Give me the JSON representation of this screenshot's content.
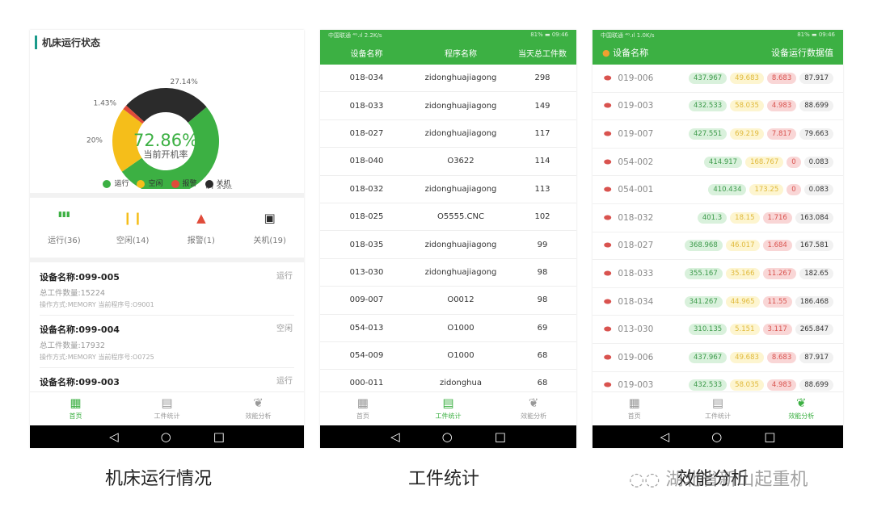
{
  "screen1": {
    "title": "机床运行状态",
    "chart_data": {
      "type": "pie",
      "center_value": "72.86%",
      "center_label": "当前开机率",
      "categories": [
        "运行",
        "空闲",
        "报警",
        "关机"
      ],
      "values": [
        51.43,
        20,
        1.43,
        27.14
      ],
      "labels": [
        "51.43%",
        "20%",
        "1.43%",
        "27.14%"
      ],
      "colors": [
        "#3cb043",
        "#f5be1a",
        "#e04b3a",
        "#2b2b2b"
      ],
      "legend_position": "bottom"
    },
    "counts": [
      {
        "label": "运行(36)",
        "icon": "bar-chart-icon",
        "color": "#3cb043"
      },
      {
        "label": "空闲(14)",
        "icon": "pause-icon",
        "color": "#f5be1a"
      },
      {
        "label": "报警(1)",
        "icon": "warning-icon",
        "color": "#e04b3a"
      },
      {
        "label": "关机(19)",
        "icon": "shutdown-icon",
        "color": "#2b2b2b"
      }
    ],
    "devices": [
      {
        "name": "设备名称:099-005",
        "status": "运行",
        "total": "总工件数量:15224",
        "op": "操作方式:MEMORY 当前程序号:O9001"
      },
      {
        "name": "设备名称:099-004",
        "status": "空闲",
        "total": "总工件数量:17932",
        "op": "操作方式:MEMORY 当前程序号:O0725"
      },
      {
        "name": "设备名称:099-003",
        "status": "运行",
        "total": "",
        "op": ""
      }
    ],
    "caption": "机床运行情况"
  },
  "tabs": [
    {
      "label": "首页",
      "icon": "home-grid-icon"
    },
    {
      "label": "工件统计",
      "icon": "table-icon"
    },
    {
      "label": "效能分析",
      "icon": "leaf-icon"
    }
  ],
  "navbar": {
    "back": "◁",
    "home": "○",
    "recent": "□"
  },
  "screen2": {
    "status": {
      "left": "中国联通 ⁴ᴳ.ıl 2.2K/s",
      "right": "81% ▬ 09:46"
    },
    "headers": [
      "设备名称",
      "程序名称",
      "当天总工件数"
    ],
    "rows": [
      [
        "018-034",
        "zidonghuajiagong",
        "298"
      ],
      [
        "018-033",
        "zidonghuajiagong",
        "149"
      ],
      [
        "018-027",
        "zidonghuajiagong",
        "117"
      ],
      [
        "018-040",
        "O3622",
        "114"
      ],
      [
        "018-032",
        "zidonghuajiagong",
        "113"
      ],
      [
        "018-025",
        "O5555.CNC",
        "102"
      ],
      [
        "018-035",
        "zidonghuajiagong",
        "99"
      ],
      [
        "013-030",
        "zidonghuajiagong",
        "98"
      ],
      [
        "009-007",
        "O0012",
        "98"
      ],
      [
        "054-013",
        "O1000",
        "69"
      ],
      [
        "054-009",
        "O1000",
        "68"
      ],
      [
        "000-011",
        "zidonghua",
        "68"
      ]
    ],
    "caption": "工件统计"
  },
  "screen3": {
    "status": {
      "left": "中国联通 ⁴ᴳ.ıl 1.0K/s",
      "right": "81% ▬ 09:46"
    },
    "header_left": "设备名称",
    "header_right": "设备运行数据值",
    "rows": [
      [
        "019-006",
        "437.967",
        "49.683",
        "8.683",
        "87.917"
      ],
      [
        "019-003",
        "432.533",
        "58.035",
        "4.983",
        "88.699"
      ],
      [
        "019-007",
        "427.551",
        "69.219",
        "7.817",
        "79.663"
      ],
      [
        "054-002",
        "414.917",
        "168.767",
        "0",
        "0.083"
      ],
      [
        "054-001",
        "410.434",
        "173.25",
        "0",
        "0.083"
      ],
      [
        "018-032",
        "401.3",
        "18.15",
        "1.716",
        "163.084"
      ],
      [
        "018-027",
        "368.968",
        "46.017",
        "1.684",
        "167.581"
      ],
      [
        "018-033",
        "355.167",
        "35.166",
        "11.267",
        "182.65"
      ],
      [
        "018-034",
        "341.267",
        "44.965",
        "11.55",
        "186.468"
      ],
      [
        "013-030",
        "310.135",
        "5.151",
        "3.117",
        "265.847"
      ],
      [
        "019-006",
        "437.967",
        "49.683",
        "8.683",
        "87.917"
      ],
      [
        "019-003",
        "432.533",
        "58.035",
        "4.983",
        "88.699"
      ]
    ],
    "caption": "效能分析"
  },
  "watermark": "湖北省新山起重机"
}
